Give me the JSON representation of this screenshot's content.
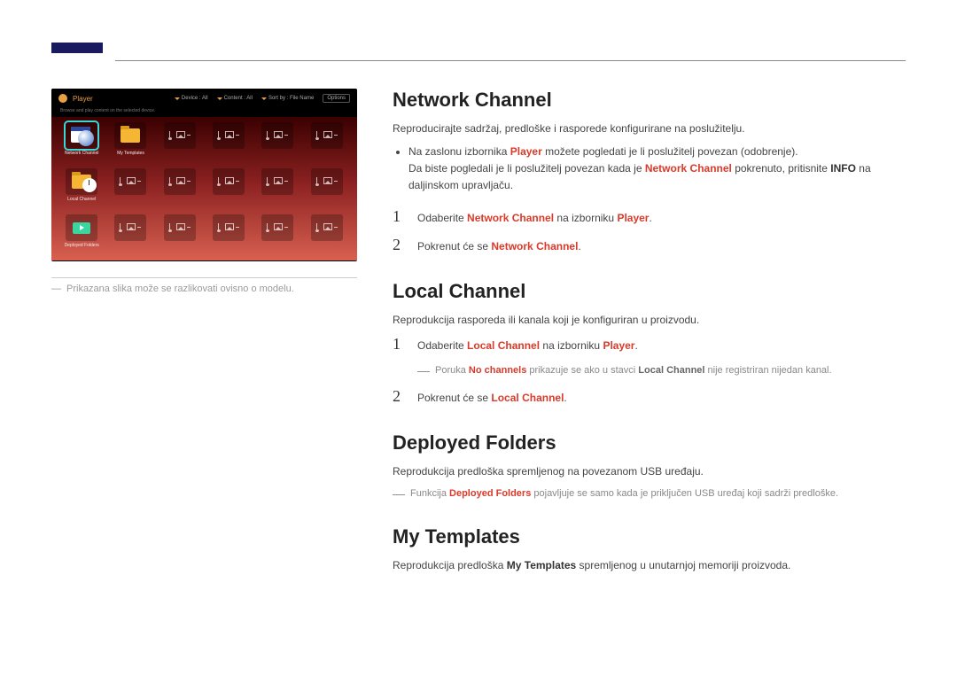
{
  "colors": {
    "accent_bar": "#1a1a5e",
    "highlight_red": "#d93a2a",
    "text_body": "#444444",
    "text_muted": "#9a9a9a",
    "ss_gradient_top": "#3a0000",
    "ss_gradient_bottom": "#d86050",
    "ss_accent": "#e5a144",
    "ss_selection": "#3bd6d6"
  },
  "screenshot": {
    "title": "Player",
    "filters": {
      "device": "Device : All",
      "content": "Content : All",
      "sort": "Sort by : File Name"
    },
    "options_label": "Options",
    "items": [
      "Network Channel",
      "My Templates",
      "",
      "",
      "",
      "",
      "Local Channel",
      "",
      "",
      "",
      "",
      "",
      "Deployed Folders",
      "",
      "",
      "",
      "",
      ""
    ]
  },
  "caption": {
    "dash": "―",
    "text": "Prikazana slika može se razlikovati ovisno o modelu."
  },
  "sections": [
    {
      "title": "Network Channel",
      "intro": "Reproducirajte sadržaj, predloške i rasporede konfigurirane na poslužitelju.",
      "bullets": [
        [
          {
            "t": "Na zaslonu izbornika "
          },
          {
            "t": "Player",
            "c": "red"
          },
          {
            "t": " možete pogledati je li poslužitelj povezan (odobrenje).\nDa biste pogledali je li poslužitelj povezan kada je "
          },
          {
            "t": "Network Channel",
            "c": "red"
          },
          {
            "t": " pokrenuto, pritisnite "
          },
          {
            "t": "INFO",
            "c": "bold"
          },
          {
            "t": " na daljinskom upravljaču."
          }
        ]
      ],
      "steps": [
        {
          "num": "1",
          "parts": [
            {
              "t": "Odaberite "
            },
            {
              "t": "Network Channel",
              "c": "red"
            },
            {
              "t": " na izborniku "
            },
            {
              "t": "Player",
              "c": "red"
            },
            {
              "t": "."
            }
          ]
        },
        {
          "num": "2",
          "parts": [
            {
              "t": "Pokrenut će se "
            },
            {
              "t": "Network Channel",
              "c": "red"
            },
            {
              "t": "."
            }
          ]
        }
      ]
    },
    {
      "title": "Local Channel",
      "intro": "Reprodukcija rasporeda ili kanala koji je konfiguriran u proizvodu.",
      "steps": [
        {
          "num": "1",
          "parts": [
            {
              "t": "Odaberite "
            },
            {
              "t": "Local Channel",
              "c": "red"
            },
            {
              "t": " na izborniku "
            },
            {
              "t": "Player",
              "c": "red"
            },
            {
              "t": "."
            }
          ],
          "note": [
            {
              "t": "Poruka "
            },
            {
              "t": "No channels",
              "c": "red"
            },
            {
              "t": " prikazuje se ako u stavci "
            },
            {
              "t": "Local Channel",
              "c": "bold"
            },
            {
              "t": " nije registriran nijedan kanal."
            }
          ]
        },
        {
          "num": "2",
          "parts": [
            {
              "t": "Pokrenut će se "
            },
            {
              "t": "Local Channel",
              "c": "red"
            },
            {
              "t": "."
            }
          ]
        }
      ]
    },
    {
      "title": "Deployed Folders",
      "intro": "Reprodukcija predloška spremljenog na povezanom USB uređaju.",
      "trailing_note": [
        {
          "t": "Funkcija "
        },
        {
          "t": "Deployed Folders",
          "c": "red"
        },
        {
          "t": " pojavljuje se samo kada je priključen USB uređaj koji sadrži predloške."
        }
      ]
    },
    {
      "title": "My Templates",
      "intro_parts": [
        {
          "t": "Reprodukcija predloška "
        },
        {
          "t": "My Templates",
          "c": "bold"
        },
        {
          "t": " spremljenog u unutarnjoj memoriji proizvoda."
        }
      ]
    }
  ]
}
